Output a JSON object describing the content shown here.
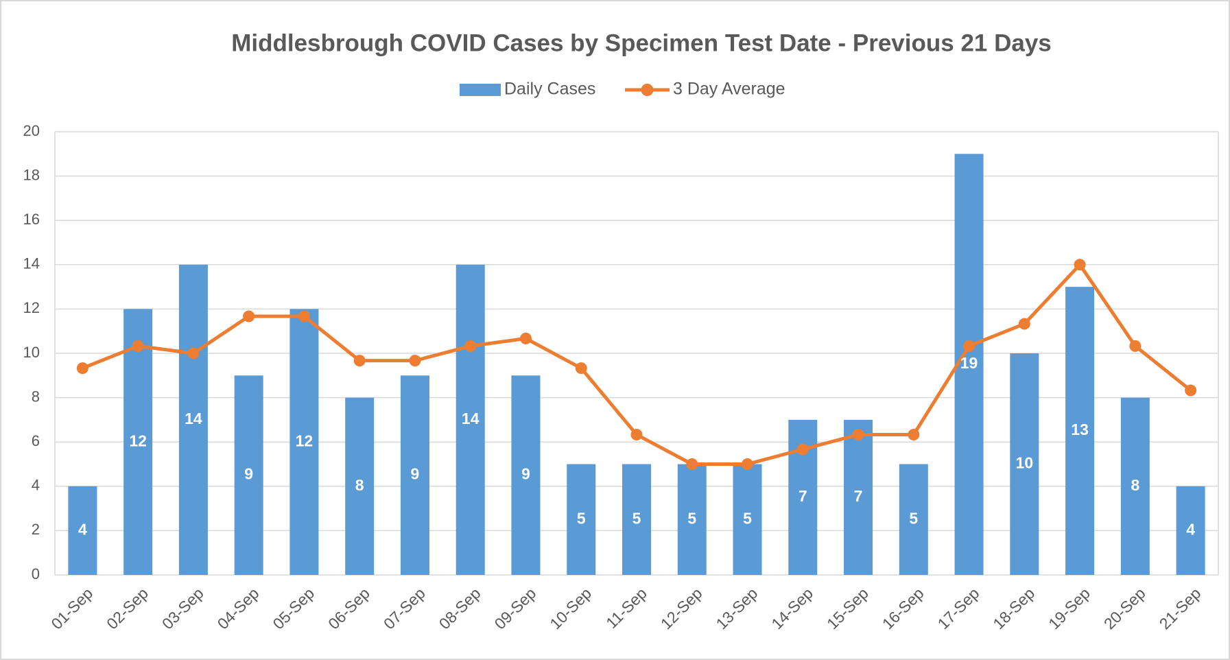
{
  "chart_data": {
    "type": "bar_line",
    "title": "Middlesbrough COVID Cases by Specimen Test Date - Previous 21 Days",
    "categories": [
      "01-Sep",
      "02-Sep",
      "03-Sep",
      "04-Sep",
      "05-Sep",
      "06-Sep",
      "07-Sep",
      "08-Sep",
      "09-Sep",
      "10-Sep",
      "11-Sep",
      "12-Sep",
      "13-Sep",
      "14-Sep",
      "15-Sep",
      "16-Sep",
      "17-Sep",
      "18-Sep",
      "19-Sep",
      "20-Sep",
      "21-Sep"
    ],
    "series": [
      {
        "name": "Daily Cases",
        "type": "bar",
        "color": "#5b9bd5",
        "values": [
          4,
          12,
          14,
          9,
          12,
          8,
          9,
          14,
          9,
          5,
          5,
          5,
          5,
          7,
          7,
          5,
          19,
          10,
          13,
          8,
          4
        ]
      },
      {
        "name": "3 Day Average",
        "type": "line",
        "color": "#ed7d31",
        "values": [
          9.33,
          10.33,
          10,
          11.67,
          11.67,
          9.67,
          9.67,
          10.33,
          10.67,
          9.33,
          6.33,
          5,
          5,
          5.67,
          6.33,
          6.33,
          10.33,
          11.33,
          14,
          10.33,
          8.33
        ]
      }
    ],
    "ylim": [
      0,
      20
    ],
    "yticks": [
      0,
      2,
      4,
      6,
      8,
      10,
      12,
      14,
      16,
      18,
      20
    ],
    "grid": true,
    "legend": "top"
  }
}
